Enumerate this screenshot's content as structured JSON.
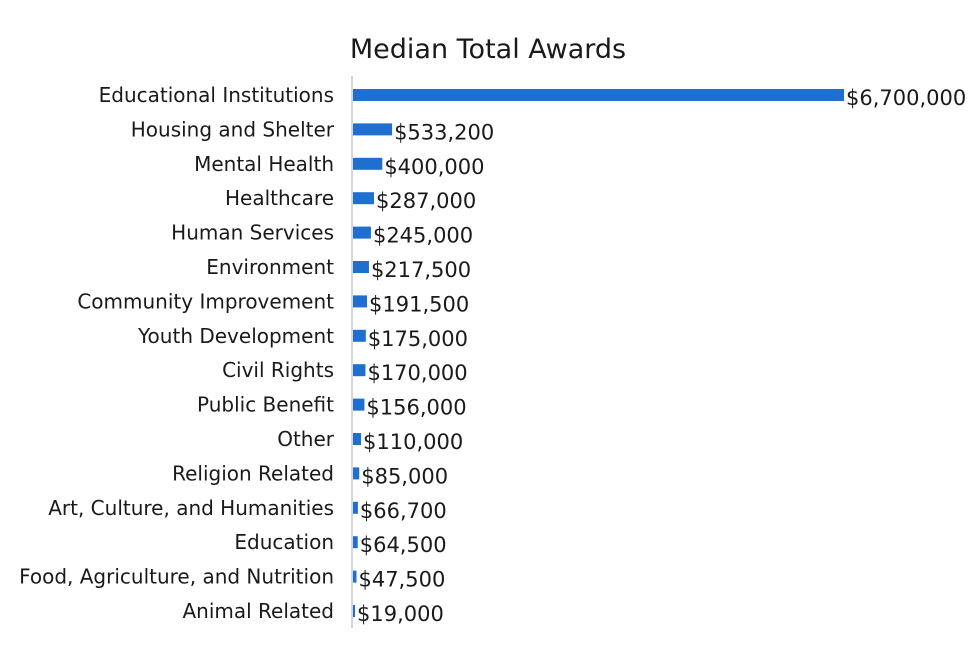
{
  "chart_data": {
    "type": "bar",
    "orientation": "horizontal",
    "title": "Median Total Awards",
    "xlabel": "",
    "ylabel": "",
    "categories": [
      "Educational Institutions",
      "Housing and Shelter",
      "Mental Health",
      "Healthcare",
      "Human Services",
      "Environment",
      "Community Improvement",
      "Youth Development",
      "Civil Rights",
      "Public Benefit",
      "Other",
      "Religion Related",
      "Art, Culture, and Humanities",
      "Education",
      "Food, Agriculture, and Nutrition",
      "Animal Related"
    ],
    "values": [
      6700000,
      533200,
      400000,
      287000,
      245000,
      217500,
      191500,
      175000,
      170000,
      156000,
      110000,
      85000,
      66700,
      64500,
      47500,
      19000
    ],
    "data_labels": [
      "$6,700,000",
      "$533,200",
      "$400,000",
      "$287,000",
      "$245,000",
      "$217,500",
      "$191,500",
      "$175,000",
      "$170,000",
      "$156,000",
      "$110,000",
      "$85,000",
      "$66,700",
      "$64,500",
      "$47,500",
      "$19,000"
    ],
    "xlim": [
      0,
      6700000
    ],
    "grid": false,
    "legend": "none",
    "bar_color": "#1f6fd1",
    "axis_color": "#c8c8c8"
  }
}
